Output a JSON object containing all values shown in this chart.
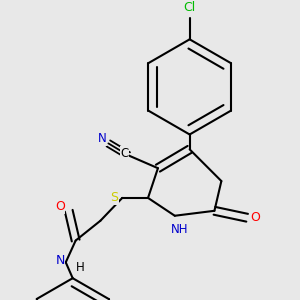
{
  "background_color": "#e8e8e8",
  "bond_color": "#000000",
  "atom_colors": {
    "N": "#0000cc",
    "O": "#ff0000",
    "S": "#cccc00",
    "Cl": "#00bb00",
    "C": "#000000"
  },
  "bond_width": 1.5,
  "font_size": 8.5,
  "fig_width": 3.0,
  "fig_height": 3.0,
  "dpi": 100
}
